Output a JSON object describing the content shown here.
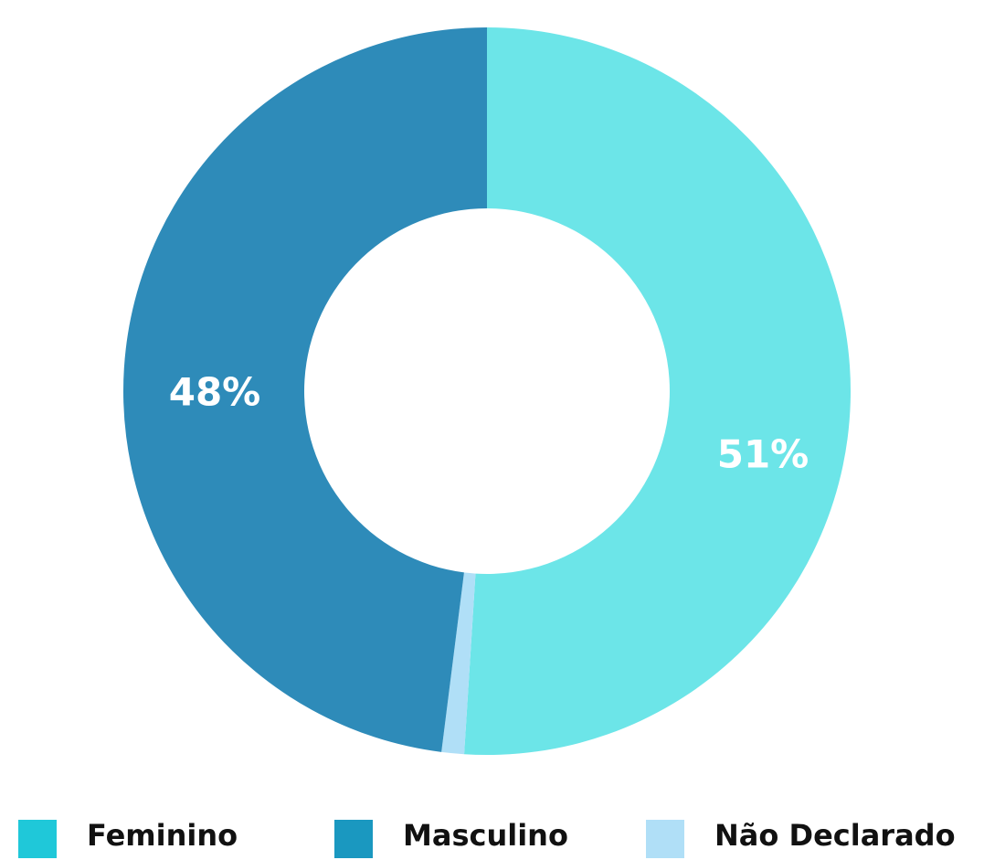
{
  "chart_data": {
    "type": "donut",
    "categories": [
      "Feminino",
      "Masculino",
      "Não Declarado"
    ],
    "values": [
      51,
      48,
      1
    ],
    "value_labels": [
      "51%",
      "48%",
      null
    ],
    "colors": [
      "#6ce5e8",
      "#2e8bb9",
      "#b0dff7"
    ],
    "legend_colors": [
      "#1fc8d9",
      "#1a98c0",
      "#b0dff7"
    ],
    "legend": "bottom"
  }
}
